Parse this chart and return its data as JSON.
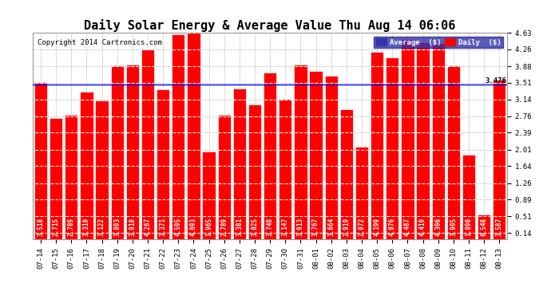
{
  "title": "Daily Solar Energy & Average Value Thu Aug 14 06:06",
  "copyright": "Copyright 2014 Cartronics.com",
  "average_value": 3.476,
  "categories": [
    "07-14",
    "07-15",
    "07-16",
    "07-17",
    "07-18",
    "07-19",
    "07-20",
    "07-21",
    "07-22",
    "07-23",
    "07-24",
    "07-25",
    "07-26",
    "07-27",
    "07-28",
    "07-29",
    "07-30",
    "07-31",
    "08-01",
    "08-02",
    "08-03",
    "08-04",
    "08-05",
    "08-06",
    "08-07",
    "08-08",
    "08-09",
    "08-10",
    "08-11",
    "08-12",
    "08-13"
  ],
  "values": [
    3.518,
    2.715,
    2.789,
    3.31,
    3.122,
    3.893,
    3.91,
    4.267,
    3.371,
    4.595,
    4.693,
    1.965,
    2.789,
    3.381,
    3.025,
    3.748,
    3.147,
    3.913,
    3.767,
    3.664,
    2.919,
    2.072,
    4.199,
    4.076,
    4.487,
    4.419,
    4.396,
    3.905,
    1.89,
    0.548,
    3.587
  ],
  "bar_color": "#ff0000",
  "bar_edge_color": "#ffffff",
  "average_line_color": "#0000ff",
  "background_color": "#ffffff",
  "plot_bg_color": "#ffffff",
  "grid_color": "#bbbbbb",
  "ylim_min": 0.0,
  "ylim_max": 4.63,
  "yticks": [
    0.14,
    0.51,
    0.89,
    1.26,
    1.64,
    2.01,
    2.39,
    2.76,
    3.14,
    3.51,
    3.88,
    4.26,
    4.63
  ],
  "legend_avg_color": "#3333aa",
  "legend_daily_color": "#ff0000",
  "avg_label": "3.476",
  "title_fontsize": 11,
  "tick_fontsize": 6.5,
  "bar_val_fontsize": 5.5,
  "copyright_fontsize": 6.5
}
